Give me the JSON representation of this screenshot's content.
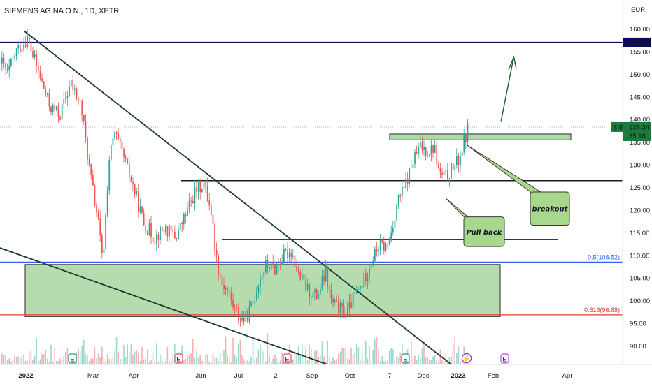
{
  "chart_data": {
    "type": "candlestick",
    "title": "SIEMENS AG NA O.N., 1D, XETR",
    "currency": "EUR",
    "y_ticks": [
      90,
      95,
      100,
      105,
      110,
      115,
      120,
      125,
      130,
      135,
      140,
      145,
      150,
      155,
      160
    ],
    "y_tick_labels": [
      "90.00",
      "95.00",
      "100.00",
      "105.00",
      "110.00",
      "115.00",
      "120.00",
      "125.00",
      "130.00",
      "135.00",
      "140.00",
      "145.00",
      "150.00",
      "155.00",
      "160.00"
    ],
    "ylim": [
      87.0,
      163.0
    ],
    "x_ticks": [
      "2022",
      "Mar",
      "Apr",
      "Jun",
      "Jul",
      "2",
      "Sep",
      "Oct",
      "7",
      "Dec",
      "2023",
      "Feb",
      "Apr"
    ],
    "x_tick_bold": [
      "2022",
      "2023"
    ],
    "last_price": {
      "symbol": "SIE",
      "value": "138.34",
      "countdown": "35:18",
      "price": 138.34
    },
    "resistance": {
      "label": "157.00",
      "price": 157.0
    },
    "fib_levels": [
      {
        "label": "0.5(108.52)",
        "price": 108.52,
        "color": "#2962ff"
      },
      {
        "label": "0.618(96.88)",
        "price": 96.88,
        "color": "#e53935"
      }
    ],
    "demand_zone": {
      "top": 108.0,
      "bottom": 96.5
    },
    "supply_zone": {
      "top": 136.8,
      "bottom": 135.5
    },
    "horizontal_lines": [
      126.5,
      113.5
    ],
    "annotations": {
      "pullback": "Pull back",
      "breakout": "breakout"
    },
    "earnings_markers": [
      "E",
      "E",
      "E",
      "E",
      "E"
    ],
    "dividend_marker": "⚡",
    "colors": {
      "up": "#26a69a",
      "down": "#ef5350",
      "zone": "#9dcf8d",
      "callout": "#a8d88e"
    },
    "price_path": [
      [
        0,
        153
      ],
      [
        10,
        150
      ],
      [
        22,
        155
      ],
      [
        38,
        158
      ],
      [
        55,
        150
      ],
      [
        70,
        143
      ],
      [
        85,
        141
      ],
      [
        100,
        148
      ],
      [
        115,
        143
      ],
      [
        128,
        128
      ],
      [
        140,
        117
      ],
      [
        146,
        108
      ],
      [
        155,
        131
      ],
      [
        163,
        137
      ],
      [
        175,
        132
      ],
      [
        190,
        125
      ],
      [
        205,
        117
      ],
      [
        220,
        114
      ],
      [
        235,
        116
      ],
      [
        250,
        114
      ],
      [
        262,
        118
      ],
      [
        278,
        124
      ],
      [
        290,
        126
      ],
      [
        300,
        121
      ],
      [
        308,
        110
      ],
      [
        316,
        104
      ],
      [
        325,
        102
      ],
      [
        335,
        98
      ],
      [
        343,
        96
      ],
      [
        350,
        96
      ],
      [
        360,
        99
      ],
      [
        368,
        104
      ],
      [
        380,
        108
      ],
      [
        392,
        107
      ],
      [
        405,
        110
      ],
      [
        416,
        111
      ],
      [
        425,
        106
      ],
      [
        440,
        102
      ],
      [
        452,
        101
      ],
      [
        465,
        106
      ],
      [
        472,
        100
      ],
      [
        485,
        98
      ],
      [
        495,
        97
      ],
      [
        505,
        101
      ],
      [
        515,
        103
      ],
      [
        528,
        108
      ],
      [
        540,
        112
      ],
      [
        553,
        112
      ],
      [
        560,
        116
      ],
      [
        567,
        122
      ],
      [
        575,
        124
      ],
      [
        580,
        126
      ],
      [
        590,
        131
      ],
      [
        600,
        134
      ],
      [
        612,
        133
      ],
      [
        620,
        134
      ],
      [
        627,
        128
      ],
      [
        635,
        127
      ],
      [
        645,
        129
      ],
      [
        655,
        131
      ],
      [
        668,
        138
      ]
    ]
  },
  "axis_label": "EUR"
}
